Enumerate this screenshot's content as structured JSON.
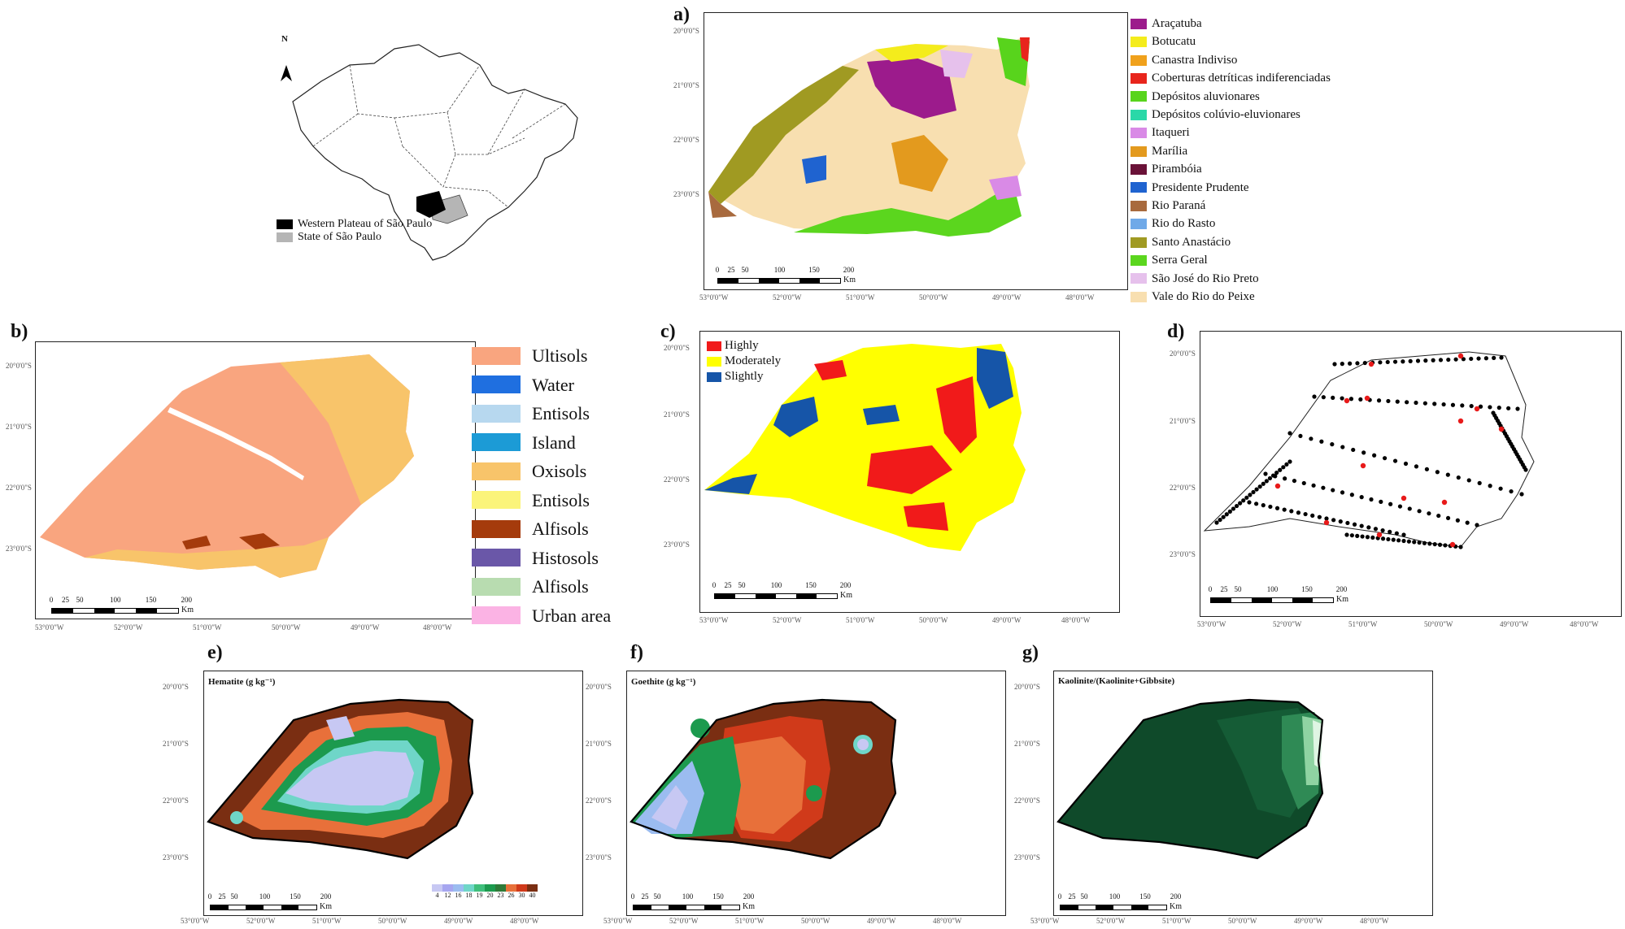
{
  "brazil_map": {
    "north_label": "N",
    "legend": [
      {
        "label": "Western Plateau of São Paulo",
        "color": "#000000"
      },
      {
        "label": "State of São Paulo",
        "color": "#b5b5b5"
      }
    ]
  },
  "panels": {
    "a": {
      "label": "a)",
      "lat_ticks": [
        "20°0'0\"S",
        "21°0'0\"S",
        "22°0'0\"S",
        "23°0'0\"S"
      ],
      "lon_ticks": [
        "53°0'0\"W",
        "52°0'0\"W",
        "51°0'0\"W",
        "50°0'0\"W",
        "49°0'0\"W",
        "48°0'0\"W"
      ],
      "scale": {
        "values": [
          "0",
          "25",
          "50",
          "100",
          "150",
          "200"
        ],
        "unit": "Km"
      },
      "legend": [
        {
          "label": "Araçatuba",
          "color": "#9c1b8c"
        },
        {
          "label": "Botucatu",
          "color": "#f4ec1c"
        },
        {
          "label": "Canastra Indiviso",
          "color": "#f0a11c"
        },
        {
          "label": "Coberturas detríticas indiferenciadas",
          "color": "#e8251c"
        },
        {
          "label": "Depósitos aluvionares",
          "color": "#58d41c"
        },
        {
          "label": "Depósitos colúvio-eluvionares",
          "color": "#2ad8a8"
        },
        {
          "label": "Itaqueri",
          "color": "#d98ae6"
        },
        {
          "label": "Marília",
          "color": "#e39a1e"
        },
        {
          "label": "Pirambóia",
          "color": "#6a1238"
        },
        {
          "label": "Presidente Prudente",
          "color": "#1f63d0"
        },
        {
          "label": "Rio Paraná",
          "color": "#a86a3e"
        },
        {
          "label": "Rio do Rasto",
          "color": "#6fa9e8"
        },
        {
          "label": "Santo Anastácio",
          "color": "#a09a22"
        },
        {
          "label": "Serra Geral",
          "color": "#5bd61e"
        },
        {
          "label": "São José do Rio Preto",
          "color": "#e6c1ec"
        },
        {
          "label": "Vale do Rio do Peixe",
          "color": "#f8dfb0"
        }
      ]
    },
    "b": {
      "label": "b)",
      "lat_ticks": [
        "20°0'0\"S",
        "21°0'0\"S",
        "22°0'0\"S",
        "23°0'0\"S"
      ],
      "lon_ticks": [
        "53°0'0\"W",
        "52°0'0\"W",
        "51°0'0\"W",
        "50°0'0\"W",
        "49°0'0\"W",
        "48°0'0\"W"
      ],
      "scale": {
        "values": [
          "0",
          "25",
          "50",
          "100",
          "150",
          "200"
        ],
        "unit": "Km"
      },
      "legend": [
        {
          "label": "Ultisols",
          "color": "#f9a57f"
        },
        {
          "label": "Water",
          "color": "#1f6fe0"
        },
        {
          "label": "Entisols",
          "color": "#b7d8ef"
        },
        {
          "label": "Island",
          "color": "#1c9bd6"
        },
        {
          "label": "Oxisols",
          "color": "#f8c46a"
        },
        {
          "label": "Entisols",
          "color": "#fbf47a"
        },
        {
          "label": "Alfisols",
          "color": "#a53b0c"
        },
        {
          "label": "Histosols",
          "color": "#6a57a8"
        },
        {
          "label": "Alfisols",
          "color": "#b8dcb0"
        },
        {
          "label": "Urban area",
          "color": "#fbb3e4"
        }
      ]
    },
    "c": {
      "label": "c)",
      "lat_ticks": [
        "20°0'0\"S",
        "21°0'0\"S",
        "22°0'0\"S",
        "23°0'0\"S"
      ],
      "lon_ticks": [
        "53°0'0\"W",
        "52°0'0\"W",
        "51°0'0\"W",
        "50°0'0\"W",
        "49°0'0\"W",
        "48°0'0\"W"
      ],
      "scale": {
        "values": [
          "0",
          "25",
          "50",
          "100",
          "150",
          "200"
        ],
        "unit": "Km"
      },
      "legend": [
        {
          "label": "Highly",
          "color": "#f11a1a"
        },
        {
          "label": "Moderately",
          "color": "#ffff00"
        },
        {
          "label": "Slightly",
          "color": "#1655a8"
        }
      ]
    },
    "d": {
      "label": "d)",
      "lat_ticks": [
        "20°0'0\"S",
        "21°0'0\"S",
        "22°0'0\"S",
        "23°0'0\"S"
      ],
      "lon_ticks": [
        "53°0'0\"W",
        "52°0'0\"W",
        "51°0'0\"W",
        "50°0'0\"W",
        "49°0'0\"W",
        "48°0'0\"W"
      ],
      "scale": {
        "values": [
          "0",
          "25",
          "50",
          "100",
          "150",
          "200"
        ],
        "unit": "Km"
      }
    },
    "e": {
      "label": "e)",
      "title": "Hematite (g kg⁻¹)",
      "lat_ticks": [
        "20°0'0\"S",
        "21°0'0\"S",
        "22°0'0\"S",
        "23°0'0\"S"
      ],
      "lon_ticks": [
        "53°0'0\"W",
        "52°0'0\"W",
        "51°0'0\"W",
        "50°0'0\"W",
        "49°0'0\"W",
        "48°0'0\"W"
      ],
      "scale": {
        "values": [
          "0",
          "25",
          "50",
          "100",
          "150",
          "200"
        ],
        "unit": "Km"
      },
      "colorbar": {
        "values": [
          "4",
          "12",
          "16",
          "18",
          "19",
          "20",
          "23",
          "26",
          "30",
          "40"
        ],
        "colors": [
          "#c7c8f3",
          "#a6a6f0",
          "#9bbcf0",
          "#6fd6c8",
          "#3fbf7c",
          "#1c9a4e",
          "#2e7a38",
          "#e8703a",
          "#d03a1a",
          "#7a2e12"
        ]
      }
    },
    "f": {
      "label": "f)",
      "title": "Goethite (g kg⁻¹)",
      "lat_ticks": [
        "20°0'0\"S",
        "21°0'0\"S",
        "22°0'0\"S",
        "23°0'0\"S"
      ],
      "lon_ticks": [
        "53°0'0\"W",
        "52°0'0\"W",
        "51°0'0\"W",
        "50°0'0\"W",
        "49°0'0\"W",
        "48°0'0\"W"
      ],
      "scale": {
        "values": [
          "0",
          "25",
          "50",
          "100",
          "150",
          "200"
        ],
        "unit": "Km"
      }
    },
    "g": {
      "label": "g)",
      "title": "Kaolinite/(Kaolinite+Gibbsite)",
      "lat_ticks": [
        "20°0'0\"S",
        "21°0'0\"S",
        "22°0'0\"S",
        "23°0'0\"S"
      ],
      "lon_ticks": [
        "53°0'0\"W",
        "52°0'0\"W",
        "51°0'0\"W",
        "50°0'0\"W",
        "49°0'0\"W",
        "48°0'0\"W"
      ],
      "scale": {
        "values": [
          "0",
          "25",
          "50",
          "100",
          "150",
          "200"
        ],
        "unit": "Km"
      }
    }
  }
}
